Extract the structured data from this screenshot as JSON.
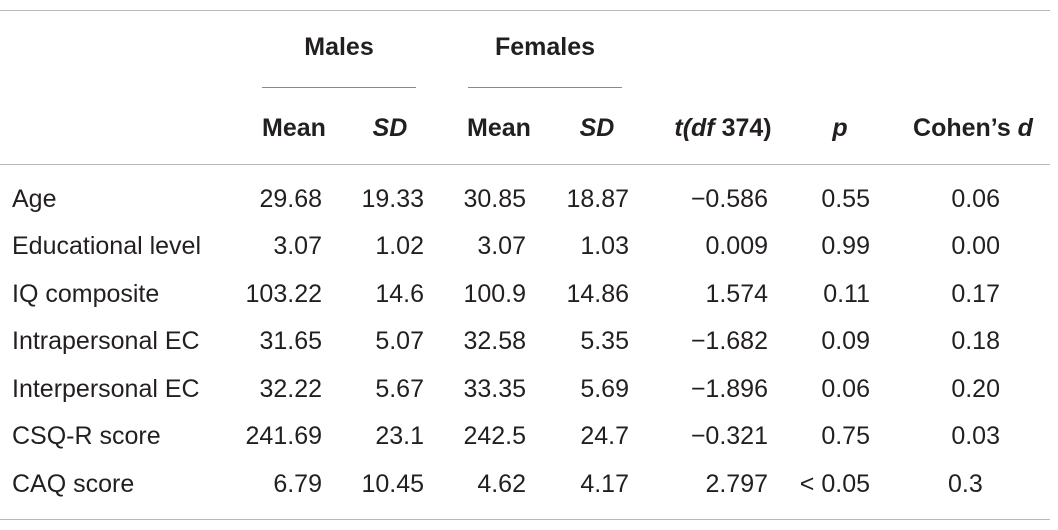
{
  "table": {
    "group_headers": {
      "males": "Males",
      "females": "Females"
    },
    "column_headers": {
      "mean_m": "Mean",
      "sd_m": "SD",
      "mean_f": "Mean",
      "sd_f": "SD",
      "t_prefix": "t(",
      "t_df": "df",
      "t_suffix": " 374)",
      "p": "p",
      "d_prefix": "Cohen’s ",
      "d_letter": "d"
    },
    "rows": [
      {
        "label": "Age",
        "mean_m": "29.68",
        "sd_m": "19.33",
        "mean_f": "30.85",
        "sd_f": "18.87",
        "t": "−0.586",
        "p": "0.55",
        "d": "0.06"
      },
      {
        "label": "Educational level",
        "mean_m": "3.07",
        "sd_m": "1.02",
        "mean_f": "3.07",
        "sd_f": "1.03",
        "t": "0.009",
        "p": "0.99",
        "d": "0.00"
      },
      {
        "label": "IQ composite",
        "mean_m": "103.22",
        "sd_m": "14.6",
        "mean_f": "100.9",
        "sd_f": "14.86",
        "t": "1.574",
        "p": "0.11",
        "d": "0.17"
      },
      {
        "label": "Intrapersonal EC",
        "mean_m": "31.65",
        "sd_m": "5.07",
        "mean_f": "32.58",
        "sd_f": "5.35",
        "t": "−1.682",
        "p": "0.09",
        "d": "0.18"
      },
      {
        "label": "Interpersonal EC",
        "mean_m": "32.22",
        "sd_m": "5.67",
        "mean_f": "33.35",
        "sd_f": "5.69",
        "t": "−1.896",
        "p": "0.06",
        "d": "0.20"
      },
      {
        "label": "CSQ-R score",
        "mean_m": "241.69",
        "sd_m": "23.1",
        "mean_f": "242.5",
        "sd_f": "24.7",
        "t": "−0.321",
        "p": "0.75",
        "d": "0.03"
      },
      {
        "label": "CAQ score",
        "mean_m": "6.79",
        "sd_m": "10.45",
        "mean_f": "4.62",
        "sd_f": "4.17",
        "t": "2.797",
        "p": "< 0.05",
        "d": "0.3"
      }
    ]
  }
}
